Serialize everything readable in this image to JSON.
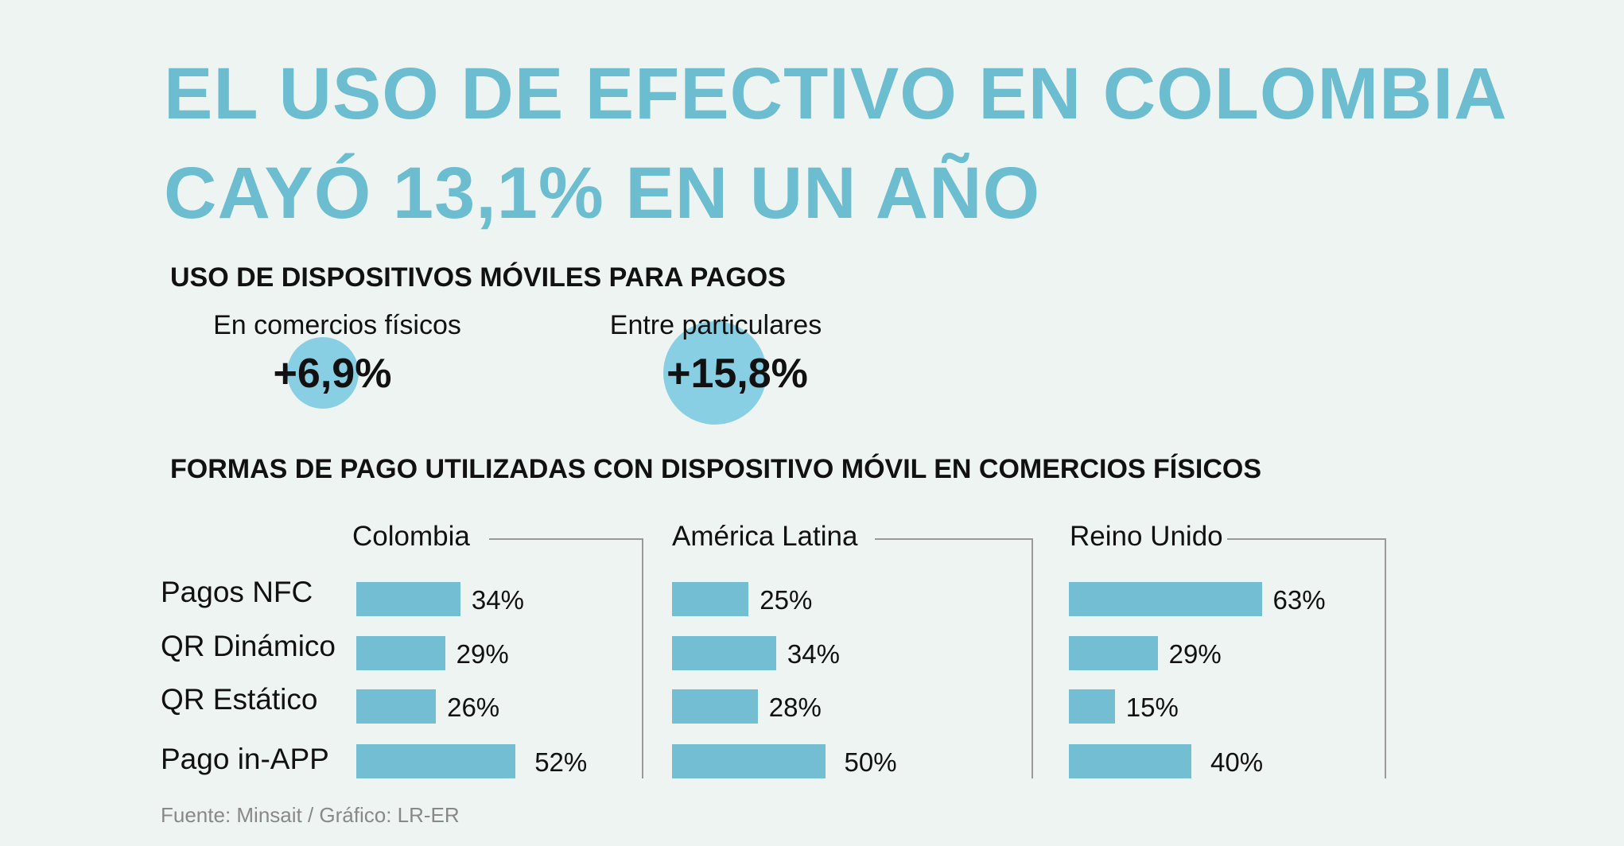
{
  "title": {
    "line1": "EL USO DE EFECTIVO EN COLOMBIA",
    "line2": "CAYÓ 13,1% EN UN AÑO"
  },
  "section1": {
    "heading": "USO DE DISPOSITIVOS MÓVILES PARA PAGOS",
    "stats": [
      {
        "label": "En comercios físicos",
        "value": "+6,9%"
      },
      {
        "label": "Entre particulares",
        "value": "+15,8%"
      }
    ]
  },
  "section2": {
    "heading": "FORMAS DE PAGO UTILIZADAS CON DISPOSITIVO MÓVIL EN COMERCIOS FÍSICOS"
  },
  "chart_data": {
    "type": "bar",
    "orientation": "horizontal",
    "categories": [
      "Pagos NFC",
      "QR Dinámico",
      "QR Estático",
      "Pago in-APP"
    ],
    "series": [
      {
        "name": "Colombia",
        "values": [
          34,
          29,
          26,
          52
        ],
        "labels": [
          "34%",
          "29%",
          "26%",
          "52%"
        ]
      },
      {
        "name": "América Latina",
        "values": [
          25,
          34,
          28,
          50
        ],
        "labels": [
          "25%",
          "34%",
          "28%",
          "50%"
        ]
      },
      {
        "name": "Reino Unido",
        "values": [
          63,
          29,
          15,
          40
        ],
        "labels": [
          "63%",
          "29%",
          "15%",
          "40%"
        ]
      }
    ],
    "unit": "%",
    "bar_color": "#74bed3"
  },
  "footer": "Fuente: Minsait / Gráfico: LR-ER",
  "colors": {
    "title": "#6dbdd1",
    "circle": "#88cfe3",
    "background": "#edf4f2"
  }
}
